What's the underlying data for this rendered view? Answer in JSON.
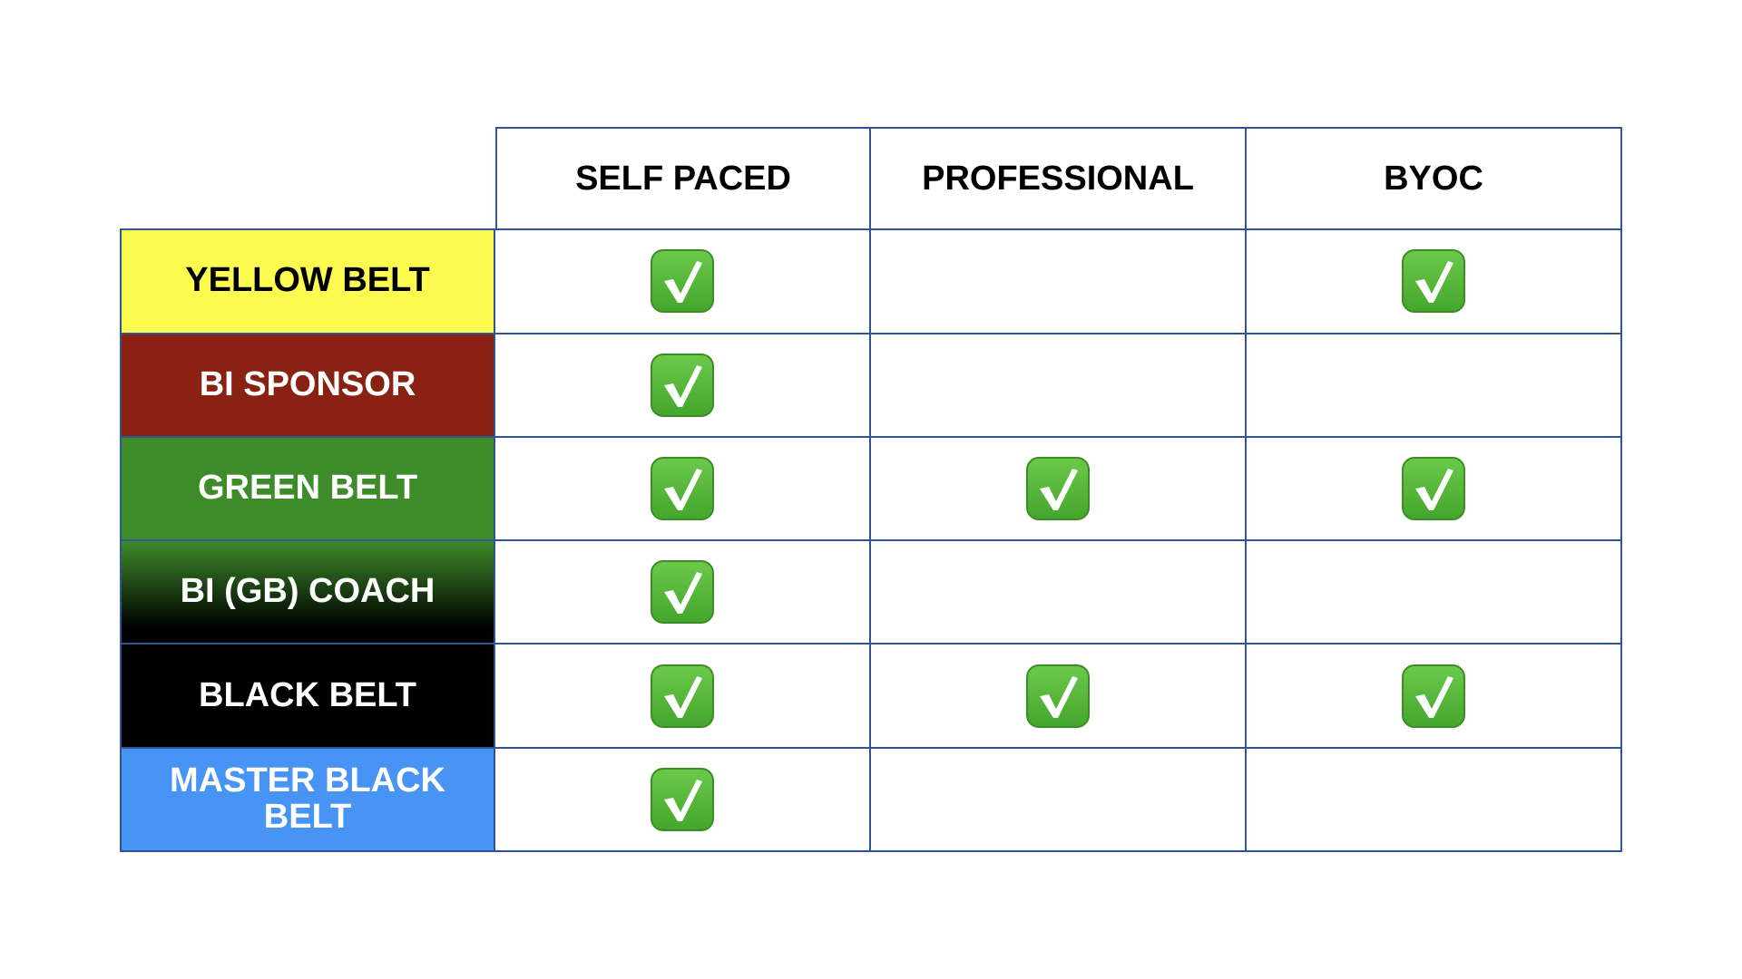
{
  "columns": [
    "SELF PACED",
    "PROFESSIONAL",
    "BYOC"
  ],
  "rows": [
    {
      "label": "YELLOW BELT",
      "bg": "#fdfb4f",
      "fg": "#000000",
      "checks": [
        true,
        false,
        true
      ]
    },
    {
      "label": "BI SPONSOR",
      "bg": "#8a2214",
      "fg": "#ffffff",
      "checks": [
        true,
        false,
        false
      ]
    },
    {
      "label": "GREEN BELT",
      "bg": "#3d8b29",
      "fg": "#ffffff",
      "checks": [
        true,
        true,
        true
      ]
    },
    {
      "label": "BI (GB) COACH",
      "bg": "linear-gradient(#3d8b29, #000000 85%)",
      "fg": "#ffffff",
      "checks": [
        true,
        false,
        false
      ]
    },
    {
      "label": "BLACK BELT",
      "bg": "#000000",
      "fg": "#ffffff",
      "checks": [
        true,
        true,
        true
      ]
    },
    {
      "label": "MASTER BLACK BELT",
      "bg": "#4794f5",
      "fg": "#ffffff",
      "checks": [
        true,
        false,
        false
      ]
    }
  ],
  "check_icon": "check-mark-button-icon",
  "border_color": "#2f5597"
}
